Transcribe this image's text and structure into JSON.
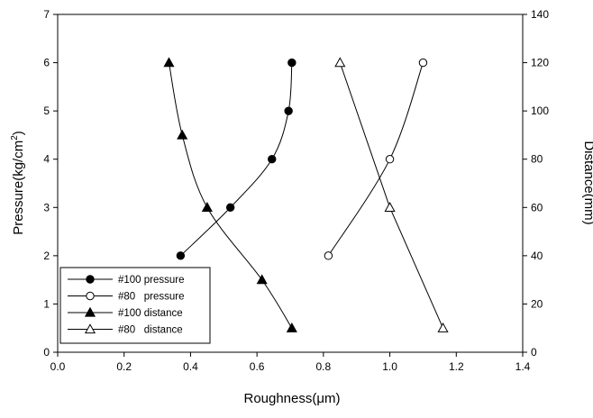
{
  "chart_data": {
    "type": "scatter",
    "xlabel": "Roughness(μm)",
    "ylabel_left": {
      "base": "Pressure(kg/cm",
      "superscript": "2",
      "suffix": ")"
    },
    "ylabel_right": "Distance(mm)",
    "xlim": [
      0.0,
      1.4
    ],
    "ylim_left": [
      0,
      7
    ],
    "ylim_right": [
      0,
      140
    ],
    "x_ticks": [
      "0.0",
      "0.2",
      "0.4",
      "0.6",
      "0.8",
      "1.0",
      "1.2",
      "1.4"
    ],
    "x_tick_values": [
      0,
      0.2,
      0.4,
      0.6,
      0.8,
      1.0,
      1.2,
      1.4
    ],
    "y_left_ticks": [
      "0",
      "1",
      "2",
      "3",
      "4",
      "5",
      "6",
      "7"
    ],
    "y_left_tick_values": [
      0,
      1,
      2,
      3,
      4,
      5,
      6,
      7
    ],
    "y_right_ticks": [
      "0",
      "20",
      "40",
      "60",
      "80",
      "100",
      "120",
      "140"
    ],
    "y_right_tick_values": [
      0,
      20,
      40,
      60,
      80,
      100,
      120,
      140
    ],
    "grid": false,
    "legend_position": "bottom-left",
    "series": [
      {
        "name": "#100 pressure",
        "axis": "left",
        "marker": "circle",
        "filled": true,
        "line_style": "smooth",
        "points": [
          {
            "x": 0.37,
            "y": 2
          },
          {
            "x": 0.52,
            "y": 3
          },
          {
            "x": 0.645,
            "y": 4
          },
          {
            "x": 0.695,
            "y": 5
          },
          {
            "x": 0.705,
            "y": 6
          }
        ]
      },
      {
        "name": "#80   pressure",
        "axis": "left",
        "marker": "circle",
        "filled": false,
        "line_style": "smooth",
        "points": [
          {
            "x": 0.815,
            "y": 2
          },
          {
            "x": 1.0,
            "y": 4
          },
          {
            "x": 1.1,
            "y": 6
          }
        ]
      },
      {
        "name": "#100 distance",
        "axis": "right",
        "marker": "triangle",
        "filled": true,
        "line_style": "smooth",
        "points": [
          {
            "x": 0.335,
            "y": 120
          },
          {
            "x": 0.375,
            "y": 90
          },
          {
            "x": 0.45,
            "y": 60
          },
          {
            "x": 0.615,
            "y": 30
          },
          {
            "x": 0.705,
            "y": 10
          }
        ]
      },
      {
        "name": "#80   distance",
        "axis": "right",
        "marker": "triangle",
        "filled": false,
        "line_style": "straight",
        "points": [
          {
            "x": 0.85,
            "y": 120
          },
          {
            "x": 1.0,
            "y": 60
          },
          {
            "x": 1.16,
            "y": 10
          }
        ]
      }
    ]
  }
}
